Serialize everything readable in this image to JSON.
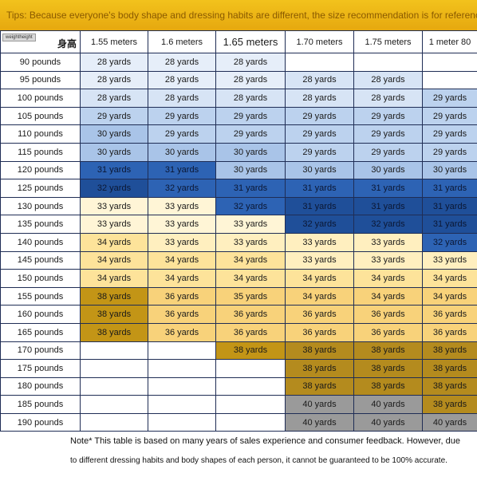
{
  "tips": "Tips: Because everyone's body shape and dressing habits are different, the size recommendation is for reference only.",
  "corner": {
    "weight_height_label": "weightheight",
    "height_chinese": "身高"
  },
  "heights": [
    "1.55 meters",
    "1.6 meters",
    "1.65 meters",
    "1.70 meters",
    "1.75 meters",
    "1 meter 80"
  ],
  "rows": [
    {
      "weight": "90 pounds",
      "cells": [
        "28 yards",
        "28 yards",
        "28 yards",
        "",
        "",
        ""
      ]
    },
    {
      "weight": "95 pounds",
      "cells": [
        "28 yards",
        "28 yards",
        "28 yards",
        "28 yards",
        "28 yards",
        ""
      ]
    },
    {
      "weight": "100 pounds",
      "cells": [
        "28 yards",
        "28 yards",
        "28 yards",
        "28 yards",
        "28 yards",
        "29 yards"
      ]
    },
    {
      "weight": "105 pounds",
      "cells": [
        "29 yards",
        "29 yards",
        "29 yards",
        "29 yards",
        "29 yards",
        "29 yards"
      ]
    },
    {
      "weight": "110 pounds",
      "cells": [
        "30 yards",
        "29 yards",
        "29 yards",
        "29 yards",
        "29 yards",
        "29 yards"
      ]
    },
    {
      "weight": "115 pounds",
      "cells": [
        "30 yards",
        "30 yards",
        "30 yards",
        "29 yards",
        "29 yards",
        "29 yards"
      ]
    },
    {
      "weight": "120 pounds",
      "cells": [
        "31 yards",
        "31 yards",
        "30 yards",
        "30 yards",
        "30 yards",
        "30 yards"
      ]
    },
    {
      "weight": "125 pounds",
      "cells": [
        "32 yards",
        "32 yards",
        "31 yards",
        "31 yards",
        "31 yards",
        "31 yards"
      ]
    },
    {
      "weight": "130 pounds",
      "cells": [
        "33 yards",
        "33 yards",
        "32 yards",
        "31 yards",
        "31 yards",
        "31 yards"
      ]
    },
    {
      "weight": "135 pounds",
      "cells": [
        "33 yards",
        "33 yards",
        "33 yards",
        "32 yards",
        "32 yards",
        "31 yards"
      ]
    },
    {
      "weight": "140 pounds",
      "cells": [
        "34 yards",
        "33 yards",
        "33 yards",
        "33 yards",
        "33 yards",
        "32 yards"
      ]
    },
    {
      "weight": "145 pounds",
      "cells": [
        "34 yards",
        "34 yards",
        "34 yards",
        "33 yards",
        "33 yards",
        "33 yards"
      ]
    },
    {
      "weight": "150 pounds",
      "cells": [
        "34 yards",
        "34 yards",
        "34 yards",
        "34 yards",
        "34 yards",
        "34 yards"
      ]
    },
    {
      "weight": "155 pounds",
      "cells": [
        "38 yards",
        "36 yards",
        "35 yards",
        "34 yards",
        "34 yards",
        "34 yards"
      ]
    },
    {
      "weight": "160 pounds",
      "cells": [
        "38 yards",
        "36 yards",
        "36 yards",
        "36 yards",
        "36 yards",
        "36 yards"
      ]
    },
    {
      "weight": "165 pounds",
      "cells": [
        "38 yards",
        "36 yards",
        "36 yards",
        "36 yards",
        "36 yards",
        "36 yards"
      ]
    },
    {
      "weight": "170 pounds",
      "cells": [
        "",
        "",
        "38 yards",
        "38 yards",
        "38 yards",
        "38 yards"
      ]
    },
    {
      "weight": "175 pounds",
      "cells": [
        "",
        "",
        "",
        "38 yards",
        "38 yards",
        "38 yards"
      ]
    },
    {
      "weight": "180 pounds",
      "cells": [
        "",
        "",
        "",
        "38 yards",
        "38 yards",
        "38 yards"
      ]
    },
    {
      "weight": "185 pounds",
      "cells": [
        "",
        "",
        "",
        "40 yards",
        "40 yards",
        "38 yards"
      ]
    },
    {
      "weight": "190 pounds",
      "cells": [
        "",
        "",
        "",
        "40 yards",
        "40 yards",
        "40 yards"
      ]
    }
  ],
  "colors": [
    [
      "b1",
      "b1",
      "b1",
      "c0",
      "c0",
      "c0"
    ],
    [
      "b1",
      "b1",
      "b1",
      "b2",
      "b2",
      "c0"
    ],
    [
      "b2",
      "b2",
      "b2",
      "b2",
      "b2",
      "b3"
    ],
    [
      "b3",
      "b3",
      "b3",
      "b3",
      "b3",
      "b3"
    ],
    [
      "b4",
      "b3",
      "b3",
      "b3",
      "b3",
      "b3"
    ],
    [
      "b4",
      "b4",
      "b4",
      "b3",
      "b3",
      "b3"
    ],
    [
      "b5",
      "b5",
      "b4",
      "b4",
      "b4",
      "b4"
    ],
    [
      "b6",
      "b5",
      "b5",
      "b5",
      "b5",
      "b5"
    ],
    [
      "y1",
      "y1",
      "b5",
      "b6",
      "b6",
      "b6"
    ],
    [
      "y1",
      "y1",
      "y1",
      "b6",
      "b6",
      "b6"
    ],
    [
      "y3",
      "y2",
      "y2",
      "y2",
      "y2",
      "b5"
    ],
    [
      "y3",
      "y3",
      "y3",
      "y2",
      "y2",
      "y2"
    ],
    [
      "y3",
      "y3",
      "y3",
      "y3",
      "y3",
      "y3"
    ],
    [
      "o2",
      "y4",
      "y4",
      "y4",
      "y4",
      "y4"
    ],
    [
      "o2",
      "y4",
      "y4",
      "y4",
      "y4",
      "y4"
    ],
    [
      "o2",
      "y4",
      "y4",
      "y4",
      "y4",
      "y4"
    ],
    [
      "c0",
      "c0",
      "o2",
      "o1",
      "o1",
      "o1"
    ],
    [
      "c0",
      "c0",
      "c0",
      "o1",
      "o1",
      "o1"
    ],
    [
      "c0",
      "c0",
      "c0",
      "o1",
      "o1",
      "o1"
    ],
    [
      "c0",
      "c0",
      "c0",
      "g1",
      "g1",
      "o1"
    ],
    [
      "c0",
      "c0",
      "c0",
      "g1",
      "g1",
      "g1"
    ]
  ],
  "note": {
    "line1": "Note* This table is based on many years of sales experience and consumer feedback. However, due",
    "line2": "to different dressing habits and body shapes of each person, it cannot be guaranteed to be 100% accurate."
  }
}
